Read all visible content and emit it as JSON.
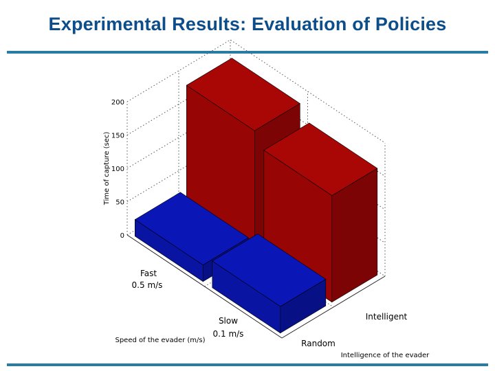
{
  "slide": {
    "title": "Experimental Results: Evaluation of Policies"
  },
  "chart_data": {
    "type": "bar",
    "projection": "3d",
    "zlabel": "Time of capture (sec)",
    "xlabel": "Speed of the evader (m/s)",
    "ylabel": "Intelligence of the evader",
    "speed_categories": [
      {
        "line1": "Fast",
        "line2": "0.5 m/s"
      },
      {
        "line1": "Slow",
        "line2": "0.1 m/s"
      }
    ],
    "intelligence_categories": [
      "Random",
      "Intelligent"
    ],
    "zlim": [
      0,
      200
    ],
    "zticks": [
      "0",
      "50",
      "100",
      "150",
      "200"
    ],
    "grid": true,
    "bars": [
      {
        "speed": "Fast",
        "intelligence": "Random",
        "value": 25,
        "color": "#0a14a3"
      },
      {
        "speed": "Fast",
        "intelligence": "Intelligent",
        "value": 180,
        "color": "#970505"
      },
      {
        "speed": "Slow",
        "intelligence": "Random",
        "value": 40,
        "color": "#0a14a3"
      },
      {
        "speed": "Slow",
        "intelligence": "Intelligent",
        "value": 160,
        "color": "#970505"
      }
    ]
  }
}
